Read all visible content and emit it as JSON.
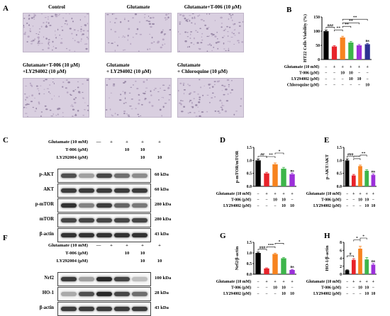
{
  "panel_labels": {
    "A": "A",
    "B": "B",
    "C": "C",
    "D": "D",
    "E": "E",
    "F": "F",
    "G": "G",
    "H": "H"
  },
  "panel_a": {
    "captions": [
      "Control",
      "Glutamate",
      "Glutamate+T-006 (10 μM)",
      "Glutamate+T-006 (10 μM)\n+LY294002 (10 μM)",
      "Glutamate\n+ LY294002 (10 μM)",
      "Glutamate\n+ Chloroquine (10 μM)"
    ]
  },
  "blot_c": {
    "treatments": [
      {
        "label": "Glutamate (10 mM)",
        "signs": [
          "—",
          "+",
          "+",
          "+",
          "+"
        ]
      },
      {
        "label": "T-006 (μM)",
        "signs": [
          "",
          "",
          "10",
          "10",
          ""
        ]
      },
      {
        "label": "LY292004 (μM)",
        "signs": [
          "",
          "",
          "",
          "10",
          "10"
        ]
      }
    ],
    "rows": [
      {
        "name": "p-AKT",
        "kda": "60 kDa",
        "intensity": [
          0.75,
          0.35,
          0.8,
          0.6,
          0.45
        ]
      },
      {
        "name": "AKT",
        "kda": "60 kDa",
        "intensity": [
          0.85,
          0.85,
          0.85,
          0.85,
          0.85
        ]
      },
      {
        "name": "p-mTOR",
        "kda": "280 kDa",
        "intensity": [
          0.9,
          0.5,
          0.85,
          0.65,
          0.55
        ]
      },
      {
        "name": "mTOR",
        "kda": "280 kDa",
        "intensity": [
          0.8,
          0.8,
          0.8,
          0.8,
          0.8
        ]
      },
      {
        "name": "β-actin",
        "kda": "43 kDa",
        "intensity": [
          0.9,
          0.9,
          0.9,
          0.9,
          0.9
        ]
      }
    ]
  },
  "blot_f": {
    "treatments": [
      {
        "label": "Glutamate (10 mM)",
        "signs": [
          "—",
          "+",
          "+",
          "+",
          "+"
        ]
      },
      {
        "label": "T-006 (μM)",
        "signs": [
          "",
          "",
          "10",
          "10",
          ""
        ]
      },
      {
        "label": "LY292004 (μM)",
        "signs": [
          "",
          "",
          "",
          "10",
          "10"
        ]
      }
    ],
    "rows": [
      {
        "name": "Nrf2",
        "kda": "100 kDa",
        "intensity": [
          0.85,
          0.35,
          0.95,
          0.8,
          0.2
        ]
      },
      {
        "name": "HO-1",
        "kda": "28 kDa",
        "intensity": [
          0.3,
          0.75,
          0.95,
          0.8,
          0.6
        ]
      },
      {
        "name": "β-actin",
        "kda": "43 kDa",
        "intensity": [
          0.85,
          0.85,
          0.85,
          0.85,
          0.85
        ]
      }
    ]
  },
  "chart_data": [
    {
      "id": "B",
      "type": "bar",
      "ylabel": "HT22 Cells Viability (%)",
      "ylim": [
        0,
        150
      ],
      "yticks": [
        0,
        50,
        100,
        150
      ],
      "values": [
        100,
        46,
        78,
        60,
        50,
        54
      ],
      "errors": [
        4,
        3,
        4,
        4,
        3,
        3
      ],
      "colors": [
        "#000000",
        "#e8232a",
        "#f7831f",
        "#3db54a",
        "#9b30d9",
        "#2e3192"
      ],
      "significance": [
        {
          "text": "###",
          "from": 0,
          "to": 1
        },
        {
          "text": "**",
          "from": 1,
          "to": 2
        },
        {
          "text": "**",
          "from": 2,
          "to": 3
        },
        {
          "text": "**",
          "from": 2,
          "to": 4
        },
        {
          "text": "**",
          "from": 2,
          "to": 5
        },
        {
          "text": "ns",
          "on": 5
        }
      ],
      "treatments": [
        {
          "label": "Glutamate (10 mM)",
          "signs": [
            "−",
            "+",
            "+",
            "+",
            "+",
            "+"
          ]
        },
        {
          "label": "T-006 (μM)",
          "signs": [
            "−",
            "−",
            "10",
            "10",
            "−",
            "−"
          ]
        },
        {
          "label": "LY294002 (μM)",
          "signs": [
            "−",
            "−",
            "−",
            "10",
            "10",
            "−"
          ]
        },
        {
          "label": "Chloroquine (μM)",
          "signs": [
            "−",
            "−",
            "−",
            "−",
            "−",
            "10"
          ]
        }
      ]
    },
    {
      "id": "D",
      "type": "bar",
      "ylabel": "p-mTOR/mTOR",
      "ylim": [
        0,
        1.5
      ],
      "yticks": [
        0.0,
        0.5,
        1.0,
        1.5
      ],
      "values": [
        1.0,
        0.5,
        0.85,
        0.68,
        0.47
      ],
      "errors": [
        0.05,
        0.04,
        0.05,
        0.05,
        0.04
      ],
      "colors": [
        "#000000",
        "#e8232a",
        "#f7831f",
        "#3db54a",
        "#9b30d9"
      ],
      "significance": [
        {
          "text": "##",
          "from": 0,
          "to": 1
        },
        {
          "text": "**",
          "from": 1,
          "to": 2
        },
        {
          "text": "*",
          "from": 2,
          "to": 3
        },
        {
          "text": "ns",
          "on": 4
        }
      ],
      "treatments": [
        {
          "label": "Glutamate (10 mM)",
          "signs": [
            "−",
            "+",
            "+",
            "+",
            "+"
          ]
        },
        {
          "label": "T-006 (μM)",
          "signs": [
            "−",
            "−",
            "10",
            "10",
            "−"
          ]
        },
        {
          "label": "LY294002 (μM)",
          "signs": [
            "−",
            "−",
            "−",
            "10",
            "10"
          ]
        }
      ]
    },
    {
      "id": "E",
      "type": "bar",
      "ylabel": "p-AKT/AKT",
      "ylim": [
        0,
        1.5
      ],
      "yticks": [
        0.0,
        0.5,
        1.0,
        1.5
      ],
      "values": [
        1.0,
        0.42,
        0.78,
        0.6,
        0.44
      ],
      "errors": [
        0.05,
        0.04,
        0.04,
        0.04,
        0.04
      ],
      "colors": [
        "#000000",
        "#e8232a",
        "#f7831f",
        "#3db54a",
        "#9b30d9"
      ],
      "significance": [
        {
          "text": "###",
          "from": 0,
          "to": 1
        },
        {
          "text": "***",
          "from": 1,
          "to": 2
        },
        {
          "text": "**",
          "from": 2,
          "to": 3
        },
        {
          "text": "ns",
          "on": 4
        }
      ],
      "treatments": [
        {
          "label": "Glutamate (10 mM)",
          "signs": [
            "−",
            "+",
            "+",
            "+",
            "+"
          ]
        },
        {
          "label": "T-006 (μM)",
          "signs": [
            "−",
            "−",
            "10",
            "10",
            "−"
          ]
        },
        {
          "label": "LY294002 (μM)",
          "signs": [
            "−",
            "−",
            "−",
            "10",
            "10"
          ]
        }
      ]
    },
    {
      "id": "G",
      "type": "bar",
      "ylabel": "Nrf2/β-actin",
      "ylim": [
        0,
        1.5
      ],
      "yticks": [
        0.0,
        0.5,
        1.0,
        1.5
      ],
      "values": [
        1.0,
        0.27,
        0.95,
        0.75,
        0.2
      ],
      "errors": [
        0.04,
        0.03,
        0.04,
        0.04,
        0.03
      ],
      "colors": [
        "#000000",
        "#e8232a",
        "#f7831f",
        "#3db54a",
        "#9b30d9"
      ],
      "significance": [
        {
          "text": "###",
          "from": 0,
          "to": 1
        },
        {
          "text": "***",
          "from": 1,
          "to": 2
        },
        {
          "text": "*",
          "from": 2,
          "to": 3
        },
        {
          "text": "ns",
          "on": 4
        }
      ],
      "treatments": [
        {
          "label": "Glutamate (10 mM)",
          "signs": [
            "−",
            "+",
            "+",
            "+",
            "+"
          ]
        },
        {
          "label": "T-006 (μM)",
          "signs": [
            "−",
            "−",
            "10",
            "10",
            "−"
          ]
        },
        {
          "label": "LY294002 (μM)",
          "signs": [
            "−",
            "−",
            "−",
            "10",
            "10"
          ]
        }
      ]
    },
    {
      "id": "H",
      "type": "bar",
      "ylabel": "HO-1/β-actin",
      "ylim": [
        0,
        8
      ],
      "yticks": [
        0,
        2,
        4,
        6,
        8
      ],
      "values": [
        1.0,
        3.6,
        6.4,
        3.7,
        2.4
      ],
      "errors": [
        0.1,
        0.3,
        0.6,
        0.5,
        0.3
      ],
      "colors": [
        "#000000",
        "#e8232a",
        "#f7831f",
        "#3db54a",
        "#9b30d9"
      ],
      "significance": [
        {
          "text": "#",
          "from": 0,
          "to": 1
        },
        {
          "text": "*",
          "from": 1,
          "to": 2
        },
        {
          "text": "*",
          "from": 2,
          "to": 3
        },
        {
          "text": "ns",
          "on": 4
        }
      ],
      "treatments": [
        {
          "label": "Glutamate (10 mM)",
          "signs": [
            "−",
            "+",
            "+",
            "+",
            "+"
          ]
        },
        {
          "label": "T-006 (μM)",
          "signs": [
            "−",
            "−",
            "10",
            "10",
            "−"
          ]
        },
        {
          "label": "LY294002 (μM)",
          "signs": [
            "−",
            "−",
            "−",
            "10",
            "10"
          ]
        }
      ]
    }
  ]
}
